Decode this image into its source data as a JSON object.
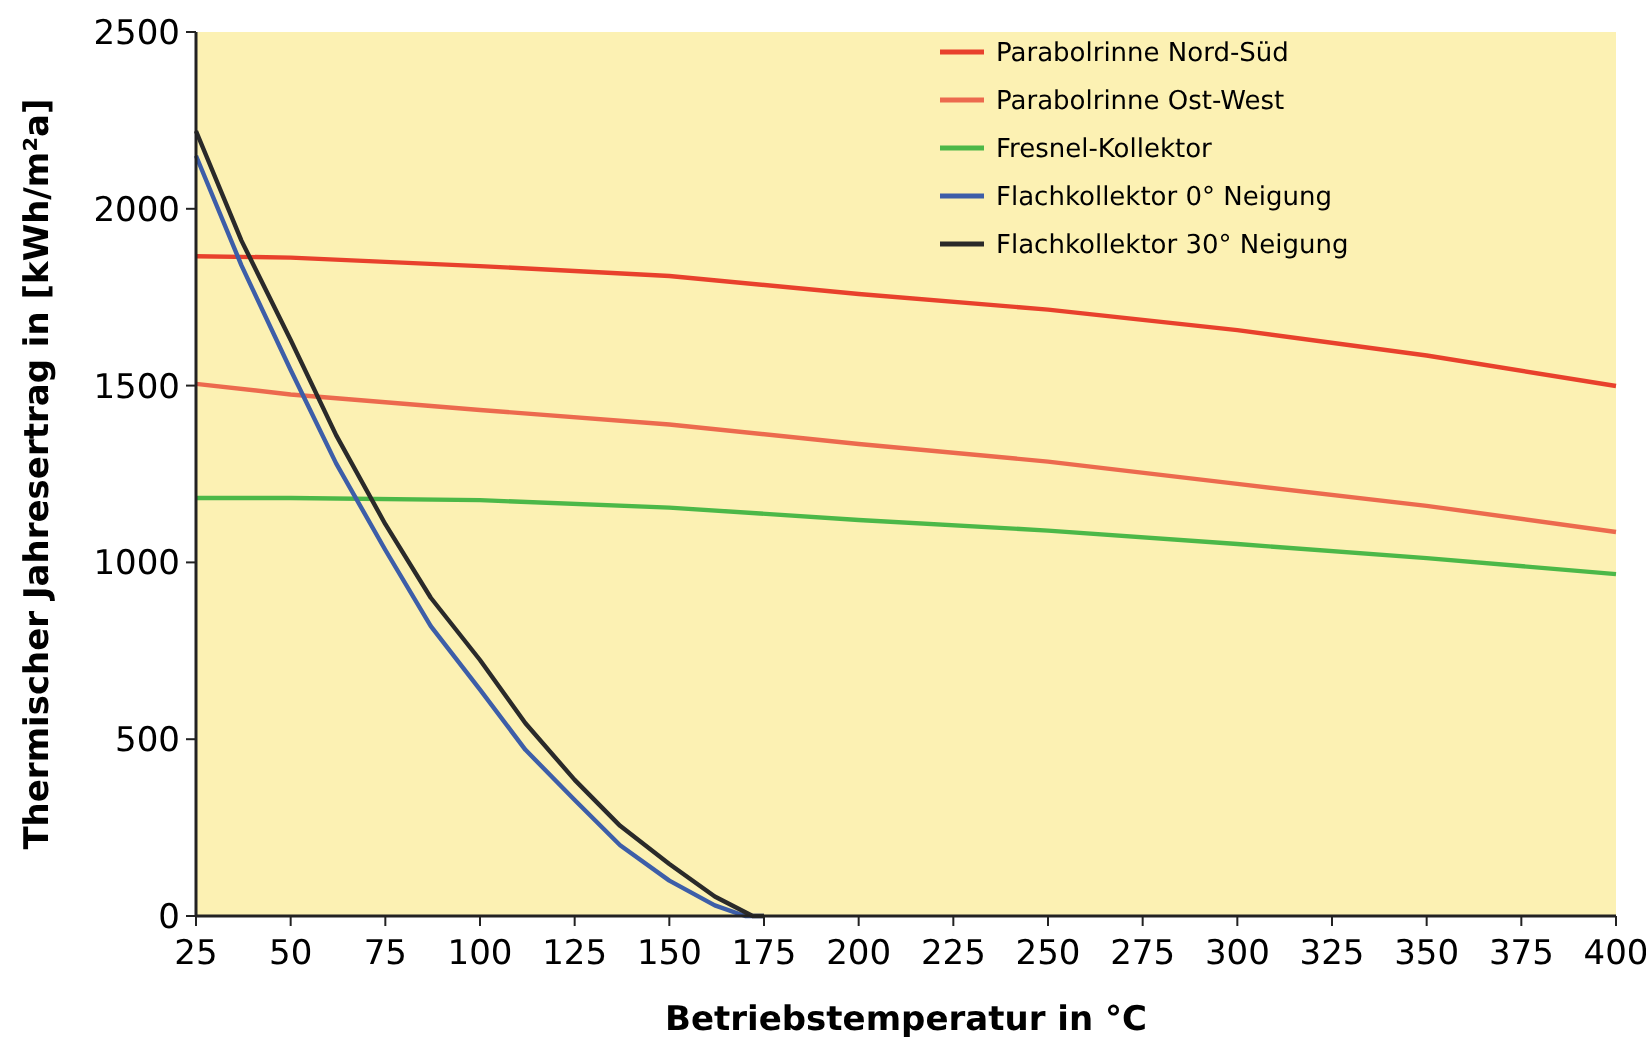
{
  "chart_data": {
    "type": "line",
    "xlabel": "Betriebstemperatur in °C",
    "ylabel": "Thermischer Jahresertrag in [kWh/m²a]",
    "xlim": [
      25,
      400
    ],
    "ylim": [
      0,
      2500
    ],
    "xticks": [
      25,
      50,
      75,
      100,
      125,
      150,
      175,
      200,
      225,
      250,
      275,
      300,
      325,
      350,
      375,
      400
    ],
    "yticks": [
      0,
      500,
      1000,
      1500,
      2000,
      2500
    ],
    "grid": false,
    "legend": "top right",
    "marker": "none",
    "line_style": "solid",
    "series": [
      {
        "name": "Parabolrinne Nord-Süd",
        "color": "#e8412c",
        "x": [
          25,
          50,
          100,
          150,
          200,
          250,
          300,
          350,
          400
        ],
        "values": [
          1866,
          1862,
          1838,
          1810,
          1759,
          1715,
          1657,
          1585,
          1499
        ]
      },
      {
        "name": "Parabolrinne Ost-West",
        "color": "#ec6a4e",
        "x": [
          25,
          50,
          100,
          150,
          200,
          250,
          300,
          350,
          400
        ],
        "values": [
          1505,
          1475,
          1431,
          1390,
          1335,
          1285,
          1222,
          1160,
          1086
        ]
      },
      {
        "name": "Fresnel-Kollektor",
        "color": "#4cb848",
        "x": [
          25,
          50,
          100,
          150,
          200,
          250,
          300,
          350,
          400
        ],
        "values": [
          1182,
          1182,
          1176,
          1155,
          1120,
          1090,
          1052,
          1012,
          967
        ]
      },
      {
        "name": "Flachkollektor 0° Neigung",
        "color": "#3d5ea8",
        "x": [
          25,
          37,
          50,
          62,
          75,
          87,
          100,
          112,
          125,
          137,
          150,
          162,
          170,
          175
        ],
        "values": [
          2150,
          1840,
          1544,
          1280,
          1035,
          820,
          640,
          470,
          328,
          200,
          100,
          30,
          0,
          0
        ]
      },
      {
        "name": "Flachkollektor 30° Neigung",
        "color": "#2a2a2a",
        "x": [
          25,
          37,
          50,
          62,
          75,
          87,
          100,
          112,
          125,
          137,
          150,
          162,
          172,
          175
        ],
        "values": [
          2220,
          1910,
          1629,
          1360,
          1108,
          900,
          724,
          545,
          385,
          255,
          147,
          55,
          0,
          0
        ]
      }
    ]
  }
}
